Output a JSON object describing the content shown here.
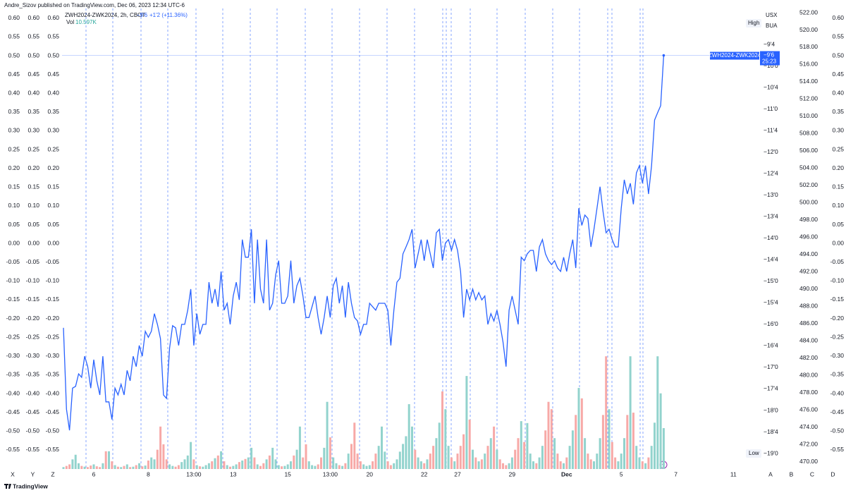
{
  "chart_data": {
    "type": "line",
    "header": "Andre_Sizov published on TradingView.com, Dec 06, 2023 12:34 UTC-6",
    "legend": {
      "symbol": "ZWH2024-ZWK2024, 2h, CBOT",
      "close": "−9'6",
      "change": "+1'2 (+11.36%)",
      "volume": "10.597K"
    },
    "price_tag": {
      "countdown": "25:23"
    },
    "currency": "USX",
    "unit": "BUA",
    "high_label": "High",
    "low_label": "Low",
    "left_buttons": [
      "X",
      "Y",
      "Z"
    ],
    "right_buttons": [
      "A",
      "B",
      "C",
      "D"
    ],
    "footer": "TradingView",
    "categories": [
      null,
      null,
      null,
      null,
      null,
      null,
      null,
      null,
      null,
      null,
      "6",
      null,
      null,
      null,
      null,
      null,
      null,
      null,
      null,
      null,
      null,
      null,
      null,
      null,
      null,
      null,
      null,
      null,
      "8",
      null,
      null,
      null,
      null,
      null,
      null,
      null,
      null,
      null,
      null,
      null,
      null,
      null,
      null,
      "13:00",
      null,
      null,
      null,
      null,
      null,
      null,
      null,
      null,
      null,
      null,
      null,
      null,
      "13",
      null,
      null,
      null,
      null,
      null,
      null,
      null,
      null,
      null,
      null,
      null,
      null,
      null,
      null,
      null,
      null,
      null,
      "15",
      null,
      null,
      null,
      null,
      null,
      null,
      null,
      null,
      null,
      null,
      null,
      null,
      null,
      "13:00",
      null,
      null,
      null,
      null,
      null,
      null,
      null,
      null,
      null,
      null,
      null,
      null,
      "20",
      null,
      null,
      null,
      null,
      null,
      null,
      null,
      null,
      null,
      null,
      null,
      null,
      null,
      null,
      null,
      null,
      null,
      "22",
      null,
      null,
      null,
      null,
      null,
      null,
      null,
      null,
      null,
      null,
      "27",
      null,
      null,
      null,
      null,
      null,
      null,
      null,
      null,
      null,
      null,
      null,
      null,
      null,
      null,
      null,
      null,
      null,
      "29",
      null,
      null,
      null,
      null,
      null,
      null,
      null,
      null,
      null,
      null,
      null,
      null,
      null,
      null,
      null,
      null,
      null,
      "Dec",
      null,
      null,
      null,
      null,
      null,
      null,
      null,
      null,
      null,
      null,
      null,
      null,
      null,
      null,
      null,
      null,
      null,
      "5",
      null,
      null,
      null,
      null,
      null,
      null,
      null,
      null,
      null,
      null,
      null,
      null,
      null,
      null,
      null,
      null,
      null,
      "7",
      null,
      null,
      null,
      null,
      null,
      null,
      null,
      null,
      null,
      null,
      null,
      null,
      null,
      null,
      null,
      null,
      null,
      null,
      "11",
      null,
      null,
      null
    ],
    "series": [
      {
        "name": "ZWH2024-ZWK2024",
        "color": "#2962ff",
        "values": [
          -16.08,
          -17.97,
          -18.46,
          -17.48,
          -17.44,
          -17.15,
          -17.23,
          -16.74,
          -16.98,
          -17.48,
          -16.82,
          -17.31,
          -17.64,
          -16.74,
          -17.8,
          -17.8,
          -18.21,
          -17.48,
          -17.64,
          -17.39,
          -17.64,
          -17.07,
          -17.31,
          -16.74,
          -16.98,
          -16.49,
          -16.74,
          -16.16,
          -16.3,
          -16.16,
          -15.75,
          -16,
          -16.33,
          -17.64,
          -17.72,
          -16.56,
          -16.03,
          -16.08,
          -16.49,
          -16,
          -16,
          -15.67,
          -15.18,
          -16.49,
          -15.75,
          -16.23,
          -16,
          -16,
          -15.02,
          -15.51,
          -15.18,
          -15.59,
          -14.77,
          -15.67,
          -15.51,
          -16,
          -15.34,
          -15.02,
          -15.43,
          -14.03,
          -14.44,
          -14.44,
          -13.79,
          -15.51,
          -14.03,
          -15.18,
          -15.51,
          -14.03,
          -15.67,
          -15.51,
          -14.85,
          -14.52,
          -15.51,
          -15.51,
          -15.34,
          -14.52,
          -15.51,
          -15.1,
          -14.93,
          -15.34,
          -15.84,
          -15.84,
          -15.59,
          -15.34,
          -15.84,
          -16.23,
          -15.84,
          -15.34,
          -15.84,
          -15.1,
          -14.93,
          -15.51,
          -15.1,
          -15.84,
          -15.02,
          -15.51,
          -15.84,
          -15.92,
          -16.23,
          -16,
          -16,
          -15.51,
          -15.59,
          -15.67,
          -15.51,
          -15.51,
          -15.51,
          -15.67,
          -16.49,
          -15.67,
          -15.02,
          -14.93,
          -14.36,
          -14.2,
          -14.03,
          -13.79,
          -14.69,
          -14.36,
          -14.03,
          -14.52,
          -14.03,
          -14.36,
          -14.69,
          -13.87,
          -13.79,
          -14.52,
          -14.11,
          -14.03,
          -14.28,
          -14.03,
          -14.28,
          -14.77,
          -15.84,
          -15.18,
          -15.43,
          -15.18,
          -15.43,
          -15.26,
          -15.43,
          -15.34,
          -16,
          -15.75,
          -15.92,
          -15.67,
          -16,
          -16.41,
          -16.98,
          -15.67,
          -15.34,
          -15.67,
          -16,
          -14.44,
          -14.52,
          -14.36,
          -14.28,
          -14.28,
          -14.77,
          -14.2,
          -14.03,
          -14.36,
          -14.52,
          -14.61,
          -14.52,
          -14.69,
          -14.77,
          -14.44,
          -14.77,
          -14.36,
          -14.03,
          -14.69,
          -13.3,
          -13.7,
          -13.46,
          -13.54,
          -14.2,
          -13.79,
          -13.3,
          -12.8,
          -13.38,
          -13.87,
          -13.79,
          -14.03,
          -14.2,
          -14.2,
          -13.3,
          -12.64,
          -12.97,
          -12.72,
          -13.21,
          -12.48,
          -12.31,
          -12.72,
          -12.31,
          -12.97,
          -12.31,
          -11.25,
          -11.08,
          -10.92,
          -9.75,
          null,
          null,
          null,
          null,
          null,
          null,
          null,
          null,
          null,
          null,
          null,
          null,
          null,
          null,
          null,
          null,
          null,
          null,
          null,
          null,
          null,
          null,
          null,
          null,
          null,
          null
        ]
      },
      {
        "name": "Vol",
        "type": "bar",
        "up_color": "#92d3cd",
        "down_color": "#f7a9a7",
        "ylim": [
          0,
          119.3
        ],
        "values": [
          0.5,
          0.8,
          1.2,
          2.5,
          3.7,
          1.5,
          0.8,
          0.6,
          0.5,
          0.9,
          1.2,
          0.7,
          0.5,
          1.5,
          4.6,
          4.6,
          2,
          1,
          0.6,
          0.5,
          0.8,
          1.2,
          0.5,
          0.6,
          1,
          1.5,
          0.7,
          0.9,
          2.2,
          3,
          2.5,
          5,
          11,
          6.4,
          2.5,
          1.2,
          0.8,
          0.6,
          1,
          1.8,
          2.5,
          3.5,
          7,
          2.5,
          1,
          0.7,
          0.6,
          1,
          1.5,
          2,
          2.8,
          3.5,
          4.6,
          2,
          1,
          0.6,
          0.8,
          1.2,
          1.8,
          2.2,
          2.6,
          3,
          5.5,
          3,
          1.2,
          0.8,
          1.5,
          2.5,
          3.5,
          5.5,
          2.5,
          1,
          0.7,
          0.8,
          1.2,
          2,
          3.5,
          5,
          11,
          3,
          6.4,
          2,
          1,
          0.8,
          1.2,
          3,
          5.5,
          17.4,
          8.2,
          3,
          1.5,
          1,
          0.8,
          1.5,
          4,
          6.5,
          12,
          4,
          2,
          1.2,
          0.8,
          1,
          2,
          4,
          6,
          11,
          4.5,
          2,
          1,
          1.5,
          2.5,
          4.5,
          6.5,
          8.5,
          16.8,
          11,
          5,
          3,
          2,
          1.5,
          2.5,
          4,
          6,
          8,
          12,
          20.1,
          15.5,
          6,
          3,
          2,
          4,
          6,
          9,
          24.1,
          12.8,
          5,
          3,
          2,
          2.5,
          4,
          6,
          8,
          11,
          5,
          2.5,
          1.5,
          1,
          1.5,
          3,
          5,
          8,
          12.4,
          7,
          11.9,
          4,
          2,
          1.5,
          3,
          6,
          10,
          17.4,
          15.5,
          8,
          4,
          2,
          1.5,
          3,
          6,
          10,
          14,
          21,
          18.3,
          8,
          4,
          2.5,
          2,
          4,
          8,
          14,
          29.2,
          15.5,
          7,
          3,
          2,
          4,
          8,
          14,
          29.2,
          14.6,
          6,
          3,
          2,
          1.5,
          3,
          6,
          12,
          29.2,
          19.6,
          10.597,
          null,
          null,
          null,
          null,
          null,
          null,
          null,
          null,
          null,
          null,
          null,
          null,
          null,
          null,
          null,
          null,
          null,
          null,
          null,
          null,
          null,
          null,
          null,
          null,
          null,
          null
        ]
      }
    ],
    "ylim": [
      -19.36,
      -8.66
    ],
    "yticks": [
      {
        "value": -9.5,
        "label": "−9'4"
      },
      {
        "value": -10,
        "label": "−10'0"
      },
      {
        "value": -10.5,
        "label": "−10'4"
      },
      {
        "value": -11,
        "label": "−11'0"
      },
      {
        "value": -11.5,
        "label": "−11'4"
      },
      {
        "value": -12,
        "label": "−12'0"
      },
      {
        "value": -12.5,
        "label": "−12'4"
      },
      {
        "value": -13,
        "label": "−13'0"
      },
      {
        "value": -13.5,
        "label": "−13'4"
      },
      {
        "value": -14,
        "label": "−14'0"
      },
      {
        "value": -14.5,
        "label": "−14'4"
      },
      {
        "value": -15,
        "label": "−15'0"
      },
      {
        "value": -15.5,
        "label": "−15'4"
      },
      {
        "value": -16,
        "label": "−16'0"
      },
      {
        "value": -16.5,
        "label": "−16'4"
      },
      {
        "value": -17,
        "label": "−17'0"
      },
      {
        "value": -17.5,
        "label": "−17'4"
      },
      {
        "value": -18,
        "label": "−18'0"
      },
      {
        "value": -18.5,
        "label": "−18'4"
      },
      {
        "value": -19,
        "label": "−19'0"
      }
    ],
    "y2lim": [
      -0.601,
      0.626
    ],
    "y2ticks": [
      {
        "value": 0.6,
        "label": "0.60"
      },
      0.55,
      {
        "value": 0.5,
        "label": "0.50"
      },
      0.45,
      {
        "value": 0.4,
        "label": "0.40"
      },
      0.35,
      {
        "value": 0.3,
        "label": "0.30"
      },
      0.25,
      {
        "value": 0.2,
        "label": "0.20"
      },
      0.15,
      {
        "value": 0.1,
        "label": "0.10"
      },
      0.05,
      {
        "value": 0,
        "label": "0.00"
      },
      -0.05,
      {
        "value": -0.1,
        "label": "-0.10"
      },
      -0.15,
      {
        "value": -0.2,
        "label": "-0.20"
      },
      -0.25,
      {
        "value": -0.3,
        "label": "-0.30"
      },
      -0.35,
      {
        "value": -0.4,
        "label": "-0.40"
      },
      -0.45,
      {
        "value": -0.5,
        "label": "-0.50"
      },
      -0.55
    ],
    "y3lim": [
      469.18,
      522.49
    ],
    "y3ticks": [
      {
        "value": 522,
        "label": "522.00"
      },
      {
        "value": 520,
        "label": "520.00"
      },
      {
        "value": 518,
        "label": "518.00"
      },
      {
        "value": 516,
        "label": "516.00"
      },
      {
        "value": 514,
        "label": "514.00"
      },
      {
        "value": 512,
        "label": "512.00"
      },
      {
        "value": 510,
        "label": "510.00"
      },
      {
        "value": 508,
        "label": "508.00"
      },
      {
        "value": 506,
        "label": "506.00"
      },
      {
        "value": 504,
        "label": "504.00"
      },
      {
        "value": 502,
        "label": "502.00"
      },
      {
        "value": 500,
        "label": "500.00"
      },
      {
        "value": 498,
        "label": "498.00"
      },
      {
        "value": 496,
        "label": "496.00"
      },
      {
        "value": 494,
        "label": "494.00"
      },
      {
        "value": 492,
        "label": "492.00"
      },
      {
        "value": 490,
        "label": "490.00"
      },
      {
        "value": 488,
        "label": "488.00"
      },
      {
        "value": 486,
        "label": "486.00"
      },
      {
        "value": 484,
        "label": "484.00"
      },
      {
        "value": 482,
        "label": "482.00"
      },
      {
        "value": 480,
        "label": "480.00"
      },
      {
        "value": 478,
        "label": "478.00"
      },
      {
        "value": 476,
        "label": "476.00"
      },
      {
        "value": 474,
        "label": "474.00"
      },
      {
        "value": 472,
        "label": "472.00"
      },
      {
        "value": 470,
        "label": "470.00"
      }
    ],
    "grid": false
  }
}
